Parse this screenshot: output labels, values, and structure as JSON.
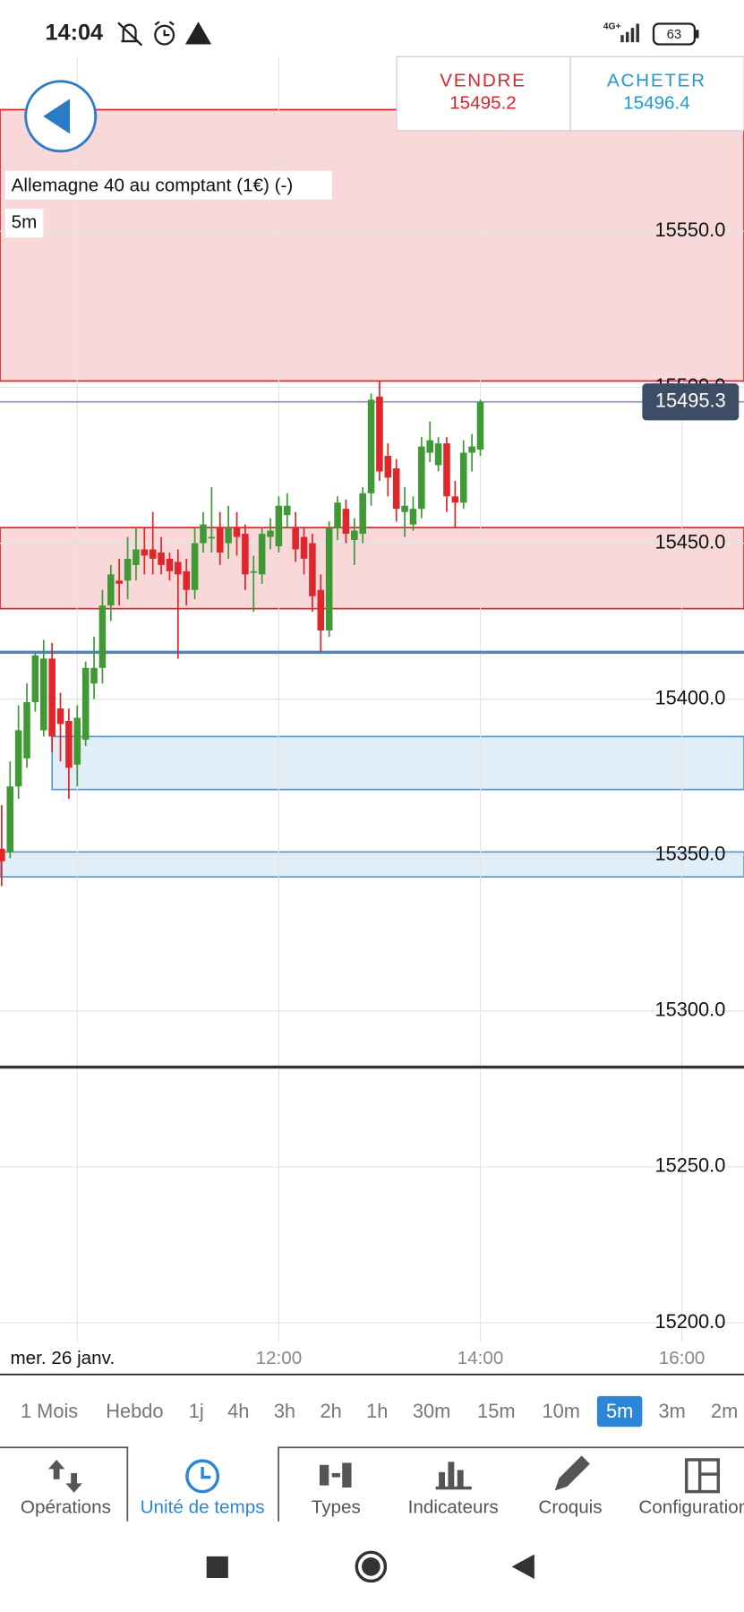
{
  "status_bar": {
    "time": "14:04",
    "network": "4G+",
    "battery": 63
  },
  "trade": {
    "sell_label": "VENDRE",
    "sell_price": 15495.2,
    "buy_label": "ACHETER",
    "buy_price": 15496.4
  },
  "instrument": {
    "name": "Allemagne 40 au comptant (1€) (-)",
    "timeframe": "5m"
  },
  "chart_data": {
    "type": "candlestick",
    "x": [
      "09:15",
      "09:20",
      "09:25",
      "09:30",
      "09:35",
      "09:40",
      "09:45",
      "09:50",
      "09:55",
      "10:00",
      "10:05",
      "10:10",
      "10:15",
      "10:20",
      "10:25",
      "10:30",
      "10:35",
      "10:40",
      "10:45",
      "10:50",
      "10:55",
      "11:00",
      "11:05",
      "11:10",
      "11:15",
      "11:20",
      "11:25",
      "11:30",
      "11:35",
      "11:40",
      "11:45",
      "11:50",
      "11:55",
      "12:00",
      "12:05",
      "12:10",
      "12:15",
      "12:20",
      "12:25",
      "12:30",
      "12:35",
      "12:40",
      "12:45",
      "12:50",
      "12:55",
      "13:00",
      "13:05",
      "13:10",
      "13:15",
      "13:20",
      "13:25",
      "13:30",
      "13:35",
      "13:40",
      "13:45",
      "13:50",
      "13:55",
      "14:00"
    ],
    "open": [
      15352,
      15351,
      15372,
      15381,
      15399,
      15390,
      15413,
      15397,
      15393,
      15379,
      15387,
      15405,
      15410,
      15430,
      15438,
      15438,
      15443,
      15448,
      15448,
      15447,
      15445,
      15444,
      15441,
      15435,
      15450,
      15452,
      15455,
      15450,
      15455,
      15453,
      15441,
      15440,
      15452,
      15449,
      15459,
      15455,
      15452,
      15450,
      15435,
      15422,
      15455,
      15461,
      15451,
      15453,
      15466,
      15497,
      15478,
      15474,
      15460,
      15456,
      15461,
      15479,
      15475,
      15482,
      15465,
      15463,
      15479,
      15480
    ],
    "high": [
      15366,
      15380,
      15398,
      15405,
      15415,
      15419,
      15418,
      15402,
      15397,
      15398,
      15412,
      15420,
      15435,
      15443,
      15445,
      15452,
      15455,
      15455,
      15460,
      15452,
      15447,
      15448,
      15445,
      15455,
      15460,
      15468,
      15460,
      15462,
      15460,
      15456,
      15446,
      15455,
      15458,
      15465,
      15466,
      15460,
      15455,
      15453,
      15440,
      15457,
      15465,
      15464,
      15458,
      15468,
      15498,
      15502,
      15482,
      15477,
      15468,
      15465,
      15484,
      15489,
      15484,
      15484,
      15470,
      15483,
      15485,
      15496
    ],
    "low": [
      15340,
      15349,
      15368,
      15378,
      15396,
      15388,
      15383,
      15380,
      15368,
      15372,
      15385,
      15400,
      15405,
      15425,
      15430,
      15432,
      15438,
      15440,
      15440,
      15440,
      15438,
      15413,
      15430,
      15432,
      15447,
      15447,
      15443,
      15445,
      15446,
      15435,
      15428,
      15437,
      15448,
      15447,
      15455,
      15444,
      15440,
      15428,
      15415,
      15420,
      15451,
      15450,
      15443,
      15450,
      15462,
      15470,
      15465,
      15457,
      15452,
      15454,
      15458,
      15476,
      15473,
      15460,
      15455,
      15461,
      15473,
      15478
    ],
    "close": [
      15348,
      15372,
      15390,
      15399,
      15414,
      15413,
      15388,
      15392,
      15378,
      15394,
      15410,
      15410,
      15430,
      15440,
      15437,
      15445,
      15448,
      15446,
      15445,
      15443,
      15441,
      15440,
      15435,
      15450,
      15456,
      15452,
      15447,
      15455,
      15452,
      15440,
      15441,
      15453,
      15454,
      15462,
      15462,
      15448,
      15445,
      15433,
      15422,
      15455,
      15463,
      15453,
      15454,
      15466,
      15496,
      15473,
      15471,
      15461,
      15462,
      15461,
      15481,
      15483,
      15482,
      15465,
      15463,
      15479,
      15481,
      15495.3
    ],
    "up_color": "#3f9a35",
    "down_color": "#e0262b",
    "xlim": [
      "09:14",
      "16:37"
    ],
    "xticks": [
      {
        "value": "10:00",
        "label": "mer. 26 janv."
      },
      "12:00",
      "14:00",
      "16:00"
    ],
    "ylim": [
      15194,
      15606
    ],
    "yticks": [
      {
        "value": 15200,
        "label": "15200.0"
      },
      {
        "value": 15250,
        "label": "15250.0"
      },
      {
        "value": 15300,
        "label": "15300.0"
      },
      {
        "value": 15350,
        "label": "15350.0"
      },
      {
        "value": 15400,
        "label": "15400.0"
      },
      {
        "value": 15450,
        "label": "15450.0"
      },
      {
        "value": 15500,
        "label": "15500.0"
      },
      {
        "value": 15550,
        "label": "15550.0"
      }
    ],
    "grid": true,
    "last_price": 15495.3,
    "zones": [
      {
        "low": 15502,
        "high": 15589,
        "color": "#e0262b"
      },
      {
        "low": 15429,
        "high": 15455,
        "color": "#e0262b"
      },
      {
        "low": 15371,
        "high": 15388,
        "color": "#5b9bd5",
        "from": "09:45"
      },
      {
        "low": 15343,
        "high": 15351,
        "color": "#5b9bd5"
      }
    ],
    "levels": [
      {
        "value": 15415,
        "color": "#4a86c8"
      },
      {
        "value": 15282,
        "color": "#333333"
      }
    ]
  },
  "timeframes": {
    "items": [
      "1 Mois",
      "Hebdo",
      "1j",
      "4h",
      "3h",
      "2h",
      "1h",
      "30m",
      "15m",
      "10m",
      "5m",
      "3m",
      "2m"
    ],
    "selected": 10
  },
  "tabs": {
    "items": [
      "Opérations",
      "Unité de temps",
      "Types",
      "Indicateurs",
      "Croquis",
      "Configuration"
    ],
    "selected": 1
  }
}
